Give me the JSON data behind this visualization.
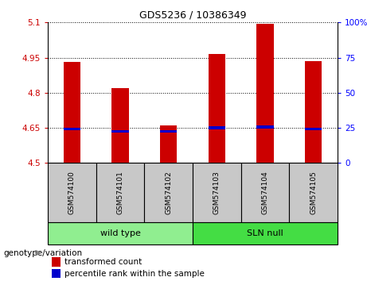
{
  "title": "GDS5236 / 10386349",
  "samples": [
    "GSM574100",
    "GSM574101",
    "GSM574102",
    "GSM574103",
    "GSM574104",
    "GSM574105"
  ],
  "group_names": [
    "wild type",
    "SLN null"
  ],
  "transformed_counts": [
    4.93,
    4.82,
    4.66,
    4.965,
    5.095,
    4.935
  ],
  "percentile_ranks": [
    4.645,
    4.635,
    4.635,
    4.65,
    4.655,
    4.645
  ],
  "bar_bottom": 4.5,
  "ylim_left": [
    4.5,
    5.1
  ],
  "ylim_right": [
    0,
    100
  ],
  "yticks_left": [
    4.5,
    4.65,
    4.8,
    4.95,
    5.1
  ],
  "ytick_labels_left": [
    "4.5",
    "4.65",
    "4.8",
    "4.95",
    "5.1"
  ],
  "yticks_right": [
    0,
    25,
    50,
    75,
    100
  ],
  "ytick_labels_right": [
    "0",
    "25",
    "50",
    "75",
    "100%"
  ],
  "red_color": "#CC0000",
  "blue_color": "#0000CC",
  "bar_width": 0.35,
  "blue_bar_height": 0.013,
  "legend_label_red": "transformed count",
  "legend_label_blue": "percentile rank within the sample",
  "genotype_label": "genotype/variation",
  "bg_color_samples": "#C8C8C8",
  "bg_color_wildtype": "#90EE90",
  "bg_color_slnnull": "#44DD44"
}
